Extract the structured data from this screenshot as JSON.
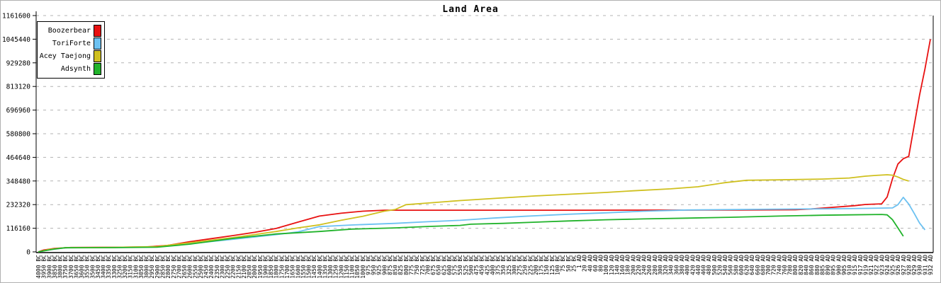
{
  "window": {
    "background": "#ffffff",
    "border_color": "#b0b0b0"
  },
  "chart_data": {
    "type": "line",
    "title": "Land Area",
    "xlabel": "",
    "ylabel": "",
    "ylim": [
      0,
      1161600
    ],
    "y_ticks": [
      0,
      116160,
      232320,
      348480,
      464640,
      580800,
      696960,
      813120,
      929280,
      1045440,
      1161600
    ],
    "grid": "horizontal-dashed",
    "grid_color": "#b3b3b3",
    "axis_color": "#000000",
    "legend_position": "top-left",
    "categories": [
      "4000 BC",
      "3950 BC",
      "3900 BC",
      "3850 BC",
      "3800 BC",
      "3750 BC",
      "3700 BC",
      "3650 BC",
      "3600 BC",
      "3550 BC",
      "3500 BC",
      "3450 BC",
      "3400 BC",
      "3350 BC",
      "3300 BC",
      "3250 BC",
      "3200 BC",
      "3150 BC",
      "3100 BC",
      "3050 BC",
      "3000 BC",
      "2950 BC",
      "2900 BC",
      "2850 BC",
      "2800 BC",
      "2750 BC",
      "2700 BC",
      "2650 BC",
      "2600 BC",
      "2550 BC",
      "2500 BC",
      "2450 BC",
      "2400 BC",
      "2350 BC",
      "2300 BC",
      "2250 BC",
      "2200 BC",
      "2150 BC",
      "2100 BC",
      "2050 BC",
      "2000 BC",
      "1950 BC",
      "1900 BC",
      "1850 BC",
      "1800 BC",
      "1750 BC",
      "1700 BC",
      "1650 BC",
      "1600 BC",
      "1550 BC",
      "1500 BC",
      "1450 BC",
      "1400 BC",
      "1350 BC",
      "1300 BC",
      "1250 BC",
      "1200 BC",
      "1150 BC",
      "1100 BC",
      "1050 BC",
      "1000 BC",
      "975 BC",
      "950 BC",
      "925 BC",
      "900 BC",
      "875 BC",
      "850 BC",
      "825 BC",
      "800 BC",
      "775 BC",
      "750 BC",
      "725 BC",
      "700 BC",
      "675 BC",
      "650 BC",
      "625 BC",
      "600 BC",
      "575 BC",
      "550 BC",
      "525 BC",
      "500 BC",
      "475 BC",
      "450 BC",
      "425 BC",
      "400 BC",
      "375 BC",
      "350 BC",
      "325 BC",
      "300 BC",
      "275 BC",
      "250 BC",
      "225 BC",
      "200 BC",
      "175 BC",
      "150 BC",
      "125 BC",
      "100 BC",
      "75 BC",
      "50 BC",
      "25 BC",
      "1 AD",
      "20 AD",
      "40 AD",
      "60 AD",
      "80 AD",
      "100 AD",
      "120 AD",
      "140 AD",
      "160 AD",
      "180 AD",
      "200 AD",
      "220 AD",
      "240 AD",
      "260 AD",
      "280 AD",
      "300 AD",
      "320 AD",
      "340 AD",
      "360 AD",
      "380 AD",
      "400 AD",
      "420 AD",
      "440 AD",
      "460 AD",
      "480 AD",
      "500 AD",
      "520 AD",
      "540 AD",
      "560 AD",
      "580 AD",
      "600 AD",
      "620 AD",
      "640 AD",
      "660 AD",
      "680 AD",
      "700 AD",
      "720 AD",
      "740 AD",
      "760 AD",
      "780 AD",
      "800 AD",
      "820 AD",
      "840 AD",
      "860 AD",
      "880 AD",
      "885 AD",
      "890 AD",
      "895 AD",
      "900 AD",
      "905 AD",
      "910 AD",
      "915 AD",
      "917 AD",
      "919 AD",
      "921 AD",
      "922 AD",
      "923 AD",
      "924 AD",
      "925 AD",
      "926 AD",
      "927 AD",
      "928 AD",
      "929 AD",
      "930 AD",
      "931 AD",
      "932 AD"
    ],
    "series": [
      {
        "name": "Boozerbear",
        "color": "#e81111",
        "points": [
          [
            0,
            0
          ],
          [
            1,
            9000
          ],
          [
            3,
            17000
          ],
          [
            6,
            21500
          ],
          [
            14,
            22500
          ],
          [
            20,
            24500
          ],
          [
            24,
            32000
          ],
          [
            28,
            50000
          ],
          [
            32,
            65000
          ],
          [
            36,
            80000
          ],
          [
            40,
            96000
          ],
          [
            44,
            115000
          ],
          [
            48,
            146000
          ],
          [
            52,
            176000
          ],
          [
            56,
            190000
          ],
          [
            60,
            200000
          ],
          [
            64,
            205000
          ],
          [
            100,
            205000
          ],
          [
            130,
            206000
          ],
          [
            140,
            207000
          ],
          [
            143,
            211000
          ],
          [
            147,
            219000
          ],
          [
            151,
            227000
          ],
          [
            153,
            233000
          ],
          [
            156,
            236000
          ],
          [
            157,
            270000
          ],
          [
            158,
            360000
          ],
          [
            159,
            432000
          ],
          [
            160,
            458000
          ],
          [
            161,
            470000
          ],
          [
            162,
            620000
          ],
          [
            163,
            770000
          ],
          [
            164,
            900000
          ],
          [
            165,
            1045000
          ]
        ]
      },
      {
        "name": "ToriForte",
        "color": "#6cc1f1",
        "points": [
          [
            0,
            0
          ],
          [
            2,
            10000
          ],
          [
            5,
            20000
          ],
          [
            14,
            21500
          ],
          [
            22,
            24000
          ],
          [
            28,
            40000
          ],
          [
            36,
            62000
          ],
          [
            44,
            85000
          ],
          [
            48,
            98000
          ],
          [
            52,
            124000
          ],
          [
            58,
            132000
          ],
          [
            66,
            140000
          ],
          [
            72,
            148000
          ],
          [
            78,
            155000
          ],
          [
            84,
            166000
          ],
          [
            90,
            175000
          ],
          [
            98,
            185000
          ],
          [
            105,
            192000
          ],
          [
            112,
            200000
          ],
          [
            120,
            206000
          ],
          [
            137,
            210000
          ],
          [
            148,
            212000
          ],
          [
            153,
            214000
          ],
          [
            158,
            216000
          ],
          [
            159,
            232000
          ],
          [
            160,
            268000
          ],
          [
            161,
            235000
          ],
          [
            162,
            190000
          ],
          [
            163,
            142000
          ],
          [
            164,
            108000
          ]
        ]
      },
      {
        "name": "Acey Taejong",
        "color": "#cfc01f",
        "points": [
          [
            0,
            0
          ],
          [
            2,
            12000
          ],
          [
            5,
            21000
          ],
          [
            14,
            22000
          ],
          [
            22,
            26000
          ],
          [
            28,
            45000
          ],
          [
            36,
            70000
          ],
          [
            44,
            100000
          ],
          [
            48,
            118000
          ],
          [
            52,
            133000
          ],
          [
            56,
            155000
          ],
          [
            60,
            175000
          ],
          [
            64,
            200000
          ],
          [
            66,
            208000
          ],
          [
            68,
            232000
          ],
          [
            72,
            240000
          ],
          [
            78,
            252000
          ],
          [
            85,
            264000
          ],
          [
            92,
            275000
          ],
          [
            98,
            283000
          ],
          [
            105,
            292000
          ],
          [
            110,
            300000
          ],
          [
            117,
            310000
          ],
          [
            122,
            320000
          ],
          [
            127,
            340000
          ],
          [
            131,
            352000
          ],
          [
            137,
            354000
          ],
          [
            145,
            358000
          ],
          [
            150,
            363000
          ],
          [
            153,
            372000
          ],
          [
            155,
            376000
          ],
          [
            157,
            379000
          ],
          [
            158,
            377000
          ],
          [
            159,
            368000
          ],
          [
            160,
            356000
          ],
          [
            161,
            348000
          ]
        ]
      },
      {
        "name": "Adsynth",
        "color": "#21b32b",
        "points": [
          [
            0,
            0
          ],
          [
            1,
            5000
          ],
          [
            3,
            14000
          ],
          [
            5,
            20000
          ],
          [
            14,
            21000
          ],
          [
            22,
            23000
          ],
          [
            28,
            38000
          ],
          [
            36,
            66000
          ],
          [
            44,
            88000
          ],
          [
            52,
            100000
          ],
          [
            58,
            112000
          ],
          [
            66,
            118000
          ],
          [
            72,
            125000
          ],
          [
            78,
            130000
          ],
          [
            80,
            136000
          ],
          [
            86,
            140000
          ],
          [
            92,
            146000
          ],
          [
            98,
            152000
          ],
          [
            105,
            158000
          ],
          [
            112,
            162000
          ],
          [
            120,
            166000
          ],
          [
            128,
            170000
          ],
          [
            137,
            176000
          ],
          [
            145,
            180000
          ],
          [
            150,
            182000
          ],
          [
            156,
            184000
          ],
          [
            157,
            182000
          ],
          [
            158,
            158000
          ],
          [
            159,
            118000
          ],
          [
            160,
            77000
          ]
        ]
      }
    ]
  }
}
